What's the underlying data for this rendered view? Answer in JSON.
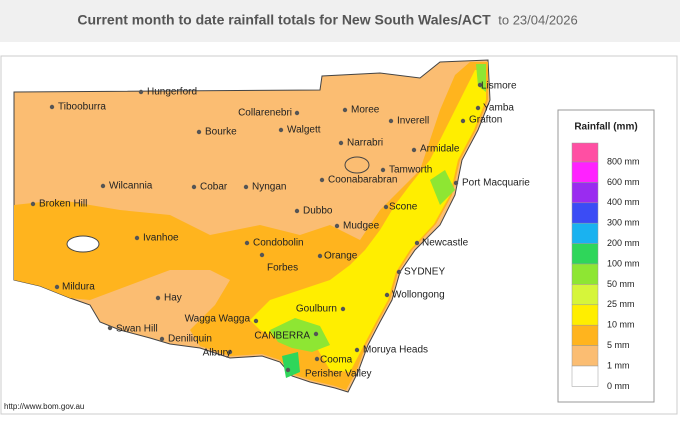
{
  "header": {
    "title": "Current month to date rainfall totals for New South Wales/ACT",
    "date": "to 23/04/2026"
  },
  "map": {
    "places": [
      "Hungerford",
      "Tibooburra",
      "Collarenebri",
      "Moree",
      "Inverell",
      "Lismore",
      "Yamba",
      "Grafton",
      "Bourke",
      "Walgett",
      "Narrabri",
      "Armidale",
      "Tamworth",
      "Coonabarabran",
      "Port Macquarie",
      "Wilcannia",
      "Cobar",
      "Nyngan",
      "Broken Hill",
      "Scone",
      "Dubbo",
      "Mudgee",
      "Ivanhoe",
      "Condobolin",
      "Newcastle",
      "Orange",
      "Forbes",
      "SYDNEY",
      "Mildura",
      "Hay",
      "Wollongong",
      "Goulburn",
      "Wagga Wagga",
      "Swan Hill",
      "Deniliquin",
      "CANBERRA",
      "Albury",
      "Moruya Heads",
      "Cooma",
      "Perisher Valley"
    ],
    "url": "http://www.bom.gov.au"
  },
  "legend": {
    "title": "Rainfall (mm)",
    "labels": [
      "800 mm",
      "600 mm",
      "400 mm",
      "300 mm",
      "200 mm",
      "100 mm",
      "50 mm",
      "25 mm",
      "10 mm",
      "5 mm",
      "1 mm",
      "0 mm"
    ],
    "colors": [
      "#ff4fa3",
      "#ff22ff",
      "#9a2cf0",
      "#3b4cf5",
      "#1ab2f0",
      "#2fd65a",
      "#8ee633",
      "#d6f53a",
      "#ffee00",
      "#ffb41e",
      "#fbbd72",
      "#ffffff"
    ]
  }
}
